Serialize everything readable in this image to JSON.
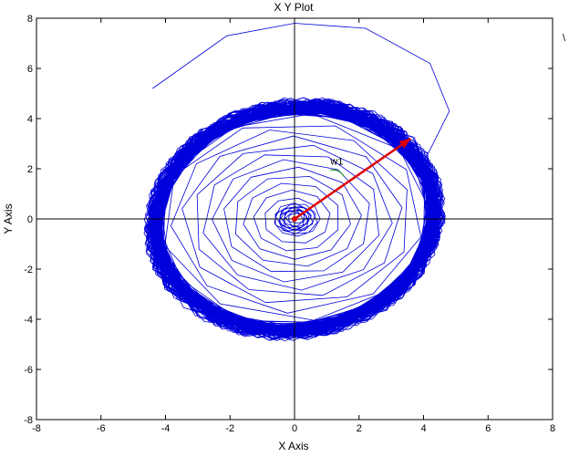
{
  "chart_data": {
    "type": "line",
    "title": "X Y Plot",
    "xlabel": "X Axis",
    "ylabel": "Y Axis",
    "xlim": [
      -8,
      8
    ],
    "ylim": [
      -8,
      8
    ],
    "xticks": [
      "-8",
      "-6",
      "-4",
      "-2",
      "0",
      "2",
      "4",
      "6",
      "8"
    ],
    "yticks": [
      "8",
      "6",
      "4",
      "2",
      "0",
      "-2",
      "-4",
      "-6",
      "-8"
    ],
    "grid": false,
    "legend": "none",
    "line_color": "#0000dd",
    "arrow_color": "#dd0000",
    "trajectory_note": "spiral trajectory starting near origin, expanding to a limit cycle of radius about 4.6",
    "arrow": {
      "from": [
        0,
        0
      ],
      "to": [
        3.6,
        3.2
      ]
    },
    "annotation": {
      "text": "w1",
      "x": 1.2,
      "y": 2.05
    },
    "margin_glyph": "\\"
  }
}
